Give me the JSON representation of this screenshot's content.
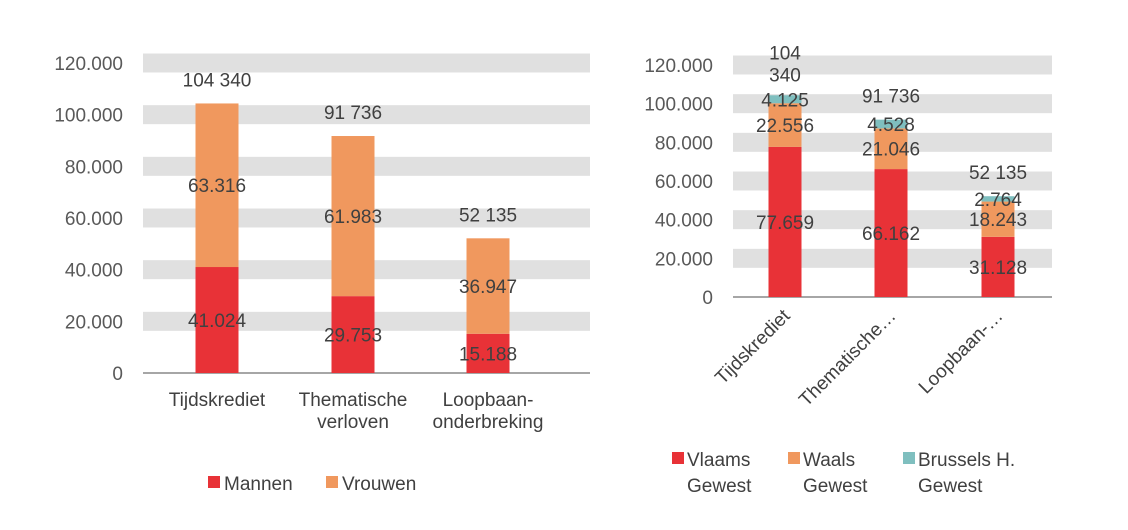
{
  "chart_data": [
    {
      "type": "bar",
      "stacked": true,
      "categories": [
        "Tijdskrediet",
        "Thematische verloven",
        "Loopbaan-onderbreking"
      ],
      "category_label_lines": [
        [
          "Tijdskrediet"
        ],
        [
          "Thematische",
          "verloven"
        ],
        [
          "Loopbaan-",
          "onderbreking"
        ]
      ],
      "series": [
        {
          "name": "Mannen",
          "values": [
            41024,
            29753,
            15188
          ],
          "labels": [
            "41.024",
            "29.753",
            "15.188"
          ],
          "color": "#e83237"
        },
        {
          "name": "Vrouwen",
          "values": [
            63316,
            61983,
            36947
          ],
          "labels": [
            "63.316",
            "61.983",
            "36.947"
          ],
          "color": "#f0985e"
        }
      ],
      "totals": [
        "104 340",
        "91 736",
        "52 135"
      ],
      "ylim": [
        0,
        120000
      ],
      "tick_labels": [
        "0",
        "20.000",
        "40.000",
        "60.000",
        "80.000",
        "100.000",
        "120.000"
      ],
      "grid": true,
      "legend": "bottom"
    },
    {
      "type": "bar",
      "stacked": true,
      "categories": [
        "Tijdskrediet",
        "Thematische…",
        "Loopbaan-…"
      ],
      "series": [
        {
          "name": "Vlaams Gewest",
          "legend_lines": [
            "Vlaams",
            "Gewest"
          ],
          "values": [
            77659,
            66162,
            31128
          ],
          "labels": [
            "77.659",
            "66.162",
            "31.128"
          ],
          "color": "#e83237"
        },
        {
          "name": "Waals Gewest",
          "legend_lines": [
            "Waals",
            "Gewest"
          ],
          "values": [
            22556,
            21046,
            18243
          ],
          "labels": [
            "22.556",
            "21.046",
            "18.243"
          ],
          "color": "#f0985e"
        },
        {
          "name": "Brussels H. Gewest",
          "legend_lines": [
            "Brussels H.",
            "Gewest"
          ],
          "values": [
            4125,
            4528,
            2764
          ],
          "labels": [
            "4.125",
            "4.528",
            "2.764"
          ],
          "color": "#7fbfbf"
        }
      ],
      "totals": [
        "104 340",
        "91 736",
        "52 135"
      ],
      "ylim": [
        0,
        120000
      ],
      "tick_labels": [
        "0",
        "20.000",
        "40.000",
        "60.000",
        "80.000",
        "100.000",
        "120.000"
      ],
      "grid": true,
      "legend": "bottom"
    }
  ]
}
